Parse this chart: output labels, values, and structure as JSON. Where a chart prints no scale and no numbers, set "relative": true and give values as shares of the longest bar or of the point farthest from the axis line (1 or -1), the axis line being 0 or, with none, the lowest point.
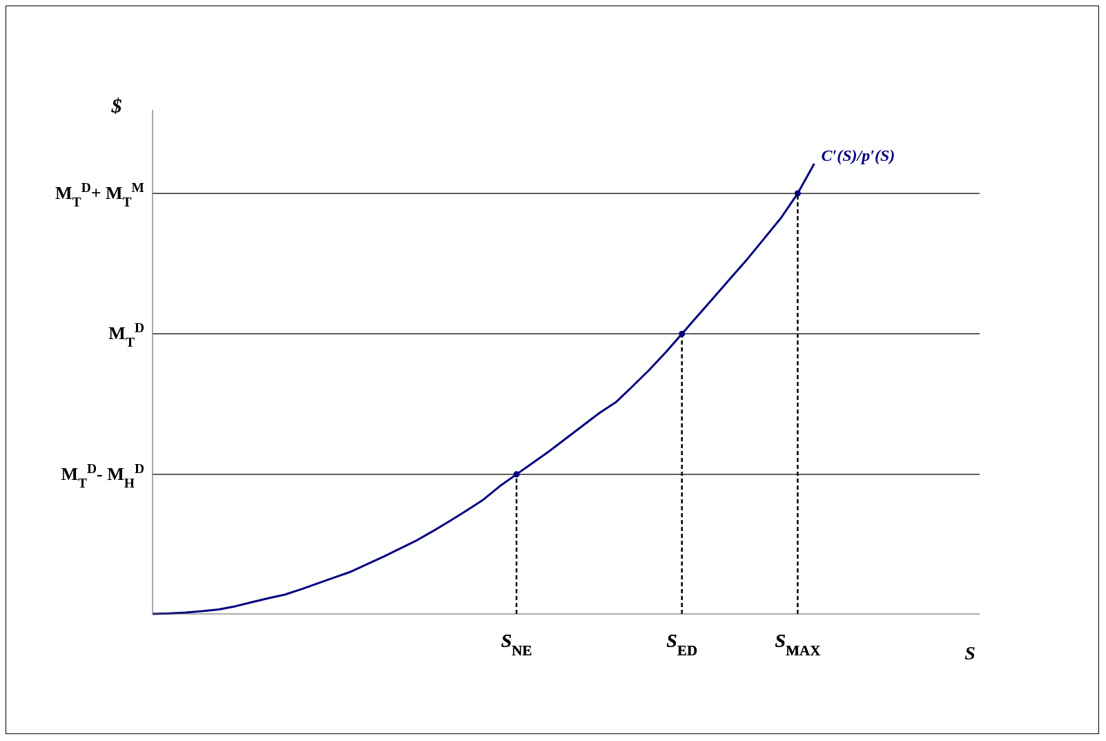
{
  "chart_data": {
    "type": "line",
    "relative": true,
    "ylabel": "$",
    "xlabel": "S",
    "categories": [
      null,
      null,
      null,
      null,
      null,
      null,
      null,
      null,
      null,
      null,
      null,
      null,
      null,
      null,
      null,
      null,
      null,
      null,
      null,
      null,
      null,
      null,
      "S$_{NE}$",
      null,
      null,
      null,
      null,
      null,
      null,
      null,
      null,
      null,
      "S$_{ED}$",
      null,
      null,
      null,
      null,
      null,
      null,
      "S$_{MAX}$",
      null,
      null,
      null,
      null,
      null,
      null,
      null,
      null,
      null,
      null,
      null
    ],
    "legend": false,
    "grid": "x",
    "ref_lines": [
      {
        "axis": "y",
        "value": 0.934,
        "label": "M$_{T}$$^{D}$+ M$_{T}$$^{M}$",
        "color": "#000000"
      },
      {
        "axis": "y",
        "value": 0.622,
        "label": "M$_{T}$$^{D}$",
        "color": "#000000"
      },
      {
        "axis": "y",
        "value": 0.31,
        "label": "M$_{T}$$^{D}$- M$_{H}$$^{D}$",
        "color": "#000000"
      }
    ],
    "series": [
      {
        "name": "C′(S)/p′(S)",
        "color": "#00007f",
        "marker": "none",
        "values": [
          0,
          0.001,
          0.003,
          0.006,
          0.01,
          0.017,
          0.026,
          0.035,
          0.043,
          0.055,
          0.068,
          0.081,
          0.094,
          0.111,
          0.128,
          0.146,
          0.164,
          0.185,
          0.207,
          0.23,
          0.254,
          0.284,
          0.31,
          0.336,
          0.362,
          0.39,
          0.418,
          0.446,
          0.47,
          0.505,
          0.541,
          0.58,
          0.622,
          0.664,
          0.706,
          0.748,
          0.79,
          0.835,
          0.88,
          0.934,
          1,
          null,
          null,
          null,
          null,
          null,
          null,
          null,
          null,
          null,
          null
        ]
      },
      {
        "type": "scatter",
        "color": "#00007f",
        "marker": "circle",
        "x": [
          "S$_{NE}$",
          "S$_{ED}$",
          "S$_{MAX}$"
        ],
        "values": [
          0.31,
          0.622,
          0.934
        ]
      }
    ]
  }
}
